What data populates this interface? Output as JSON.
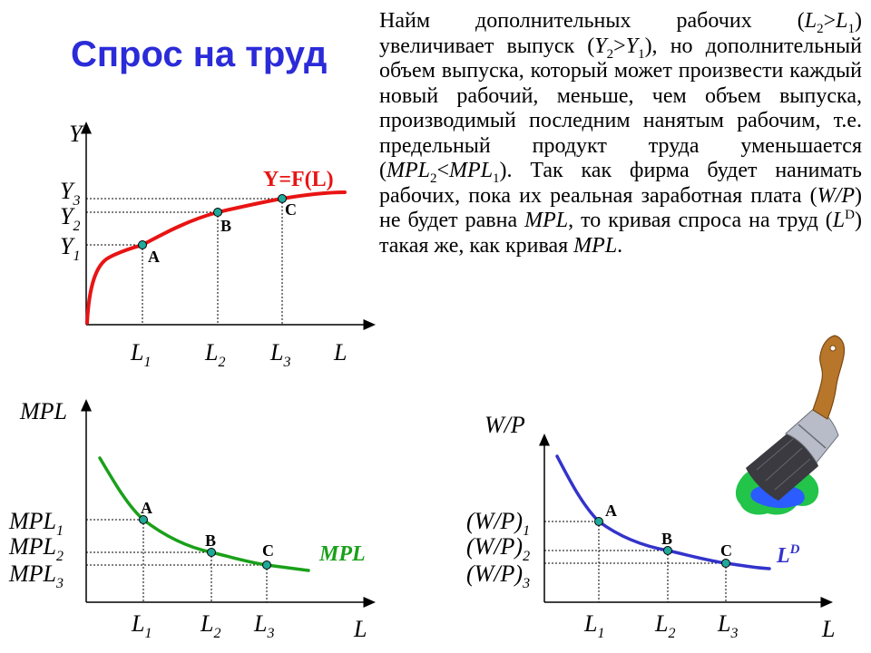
{
  "slide": {
    "title": "Спрос на труд",
    "paragraph": {
      "t1": "Найм дополнительных рабочих (",
      "t2": ") увеличивает выпуск (",
      "t3": "), но дополнительный объем выпуска, который может произвести каждый новый рабочий, меньше, чем объем выпуска, производимый последним нанятым рабочим, т.е. предельный продукт труда уменьшается (",
      "t4": "). Так как фирма будет нанимать рабочих, пока их реальная заработная плата (",
      "t5": ") не будет равна ",
      "t6": ", то кривая спроса на труд (",
      "t7": ") такая же, как кривая ",
      "t8": ".",
      "m_L": "L",
      "m_Y": "Y",
      "m_MPL": "MPL",
      "m_WP": "W/P",
      "sub1": "1",
      "sub2": "2",
      "sup_D": "D",
      "gt": ">",
      "lt": "<"
    }
  },
  "colors": {
    "title": "#2b2bd9",
    "production_curve": "#e81414",
    "mpl_curve": "#1aa01a",
    "ld_curve": "#3333cc",
    "point_fill": "#20a898",
    "axis": "#000000",
    "brush_handle": "#b8762a",
    "brush_ferrule": "#b8bcc8",
    "brush_bristles": "#3a3a40",
    "paint_green": "#22c44a",
    "paint_blue": "#2a5cff"
  },
  "icons": {
    "brush": "paint-brush-icon"
  },
  "charts": {
    "production": {
      "y_axis": {
        "letter": "Y",
        "sub": ""
      },
      "x_axis": {
        "letter": "L",
        "sub": ""
      },
      "curve_label": "Y=F(L)",
      "x_ticks": [
        {
          "letter": "L",
          "sub": "1"
        },
        {
          "letter": "L",
          "sub": "2"
        },
        {
          "letter": "L",
          "sub": "3"
        }
      ],
      "y_ticks": [
        {
          "letter": "Y",
          "sub": "3"
        },
        {
          "letter": "Y",
          "sub": "2"
        },
        {
          "letter": "Y",
          "sub": "1"
        }
      ],
      "points": [
        "A",
        "B",
        "C"
      ]
    },
    "mpl": {
      "y_axis": {
        "letter": "MPL",
        "sub": ""
      },
      "x_axis": {
        "letter": "L",
        "sub": ""
      },
      "curve_label": "MPL",
      "x_ticks": [
        {
          "letter": "L",
          "sub": "1"
        },
        {
          "letter": "L",
          "sub": "2"
        },
        {
          "letter": "L",
          "sub": "3"
        }
      ],
      "y_ticks": [
        {
          "letter": "MPL",
          "sub": "1"
        },
        {
          "letter": "MPL",
          "sub": "2"
        },
        {
          "letter": "MPL",
          "sub": "3"
        }
      ],
      "points": [
        "A",
        "B",
        "C"
      ]
    },
    "labor_demand": {
      "y_axis": {
        "letter": "W/P",
        "sub": ""
      },
      "x_axis": {
        "letter": "L",
        "sub": ""
      },
      "curve_label": {
        "letter": "L",
        "sup": "D"
      },
      "x_ticks": [
        {
          "letter": "L",
          "sub": "1"
        },
        {
          "letter": "L",
          "sub": "2"
        },
        {
          "letter": "L",
          "sub": "3"
        }
      ],
      "y_ticks": [
        {
          "letter": "(W/P)",
          "sub": "1"
        },
        {
          "letter": "(W/P)",
          "sub": "2"
        },
        {
          "letter": "(W/P)",
          "sub": "3"
        }
      ],
      "points": [
        "A",
        "B",
        "C"
      ]
    }
  }
}
